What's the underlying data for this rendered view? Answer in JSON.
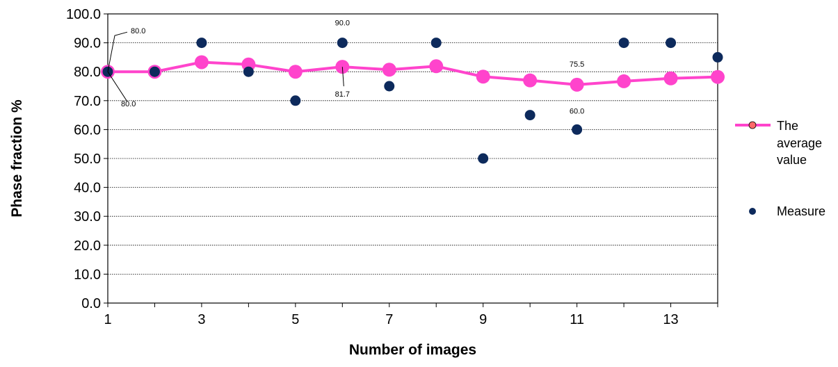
{
  "chart_data": {
    "type": "line",
    "xlabel": "Number of images",
    "ylabel": "Phase fraction %",
    "xlim": [
      1,
      14
    ],
    "ylim": [
      0,
      100
    ],
    "x_ticks": [
      1,
      3,
      5,
      7,
      9,
      11,
      13
    ],
    "y_ticks": [
      "0.0",
      "10.0",
      "20.0",
      "30.0",
      "40.0",
      "50.0",
      "60.0",
      "70.0",
      "80.0",
      "90.0",
      "100.0"
    ],
    "grid": "horizontal",
    "legend_position": "right",
    "series": [
      {
        "name": "The average value",
        "kind": "line",
        "color": "#ff44cc",
        "x": [
          1,
          2,
          3,
          4,
          5,
          6,
          7,
          8,
          9,
          10,
          11,
          12,
          13,
          14
        ],
        "y": [
          80.0,
          80.0,
          83.3,
          82.5,
          80.0,
          81.7,
          80.7,
          81.9,
          78.3,
          77.0,
          75.5,
          76.7,
          77.7,
          78.2
        ]
      },
      {
        "name": "Measure",
        "kind": "scatter",
        "color": "#0d2a5c",
        "x": [
          1,
          2,
          3,
          4,
          5,
          6,
          7,
          8,
          9,
          10,
          11,
          12,
          13,
          14
        ],
        "y": [
          80,
          80,
          90,
          80,
          70,
          90,
          75,
          90,
          50,
          65,
          60,
          90,
          90,
          85
        ]
      }
    ],
    "annotations": [
      {
        "text": "80.0",
        "x": 1,
        "y": 80.0
      },
      {
        "text": "80.0",
        "x": 1,
        "y": 80.0
      },
      {
        "text": "90.0",
        "x": 6,
        "y": 90.0
      },
      {
        "text": "81.7",
        "x": 6,
        "y": 81.7
      },
      {
        "text": "75.5",
        "x": 11,
        "y": 75.5
      },
      {
        "text": "60.0",
        "x": 11,
        "y": 60.0
      }
    ],
    "legend": [
      {
        "lines": [
          "The",
          "average",
          "value"
        ]
      },
      {
        "lines": [
          "Measure"
        ]
      }
    ]
  }
}
